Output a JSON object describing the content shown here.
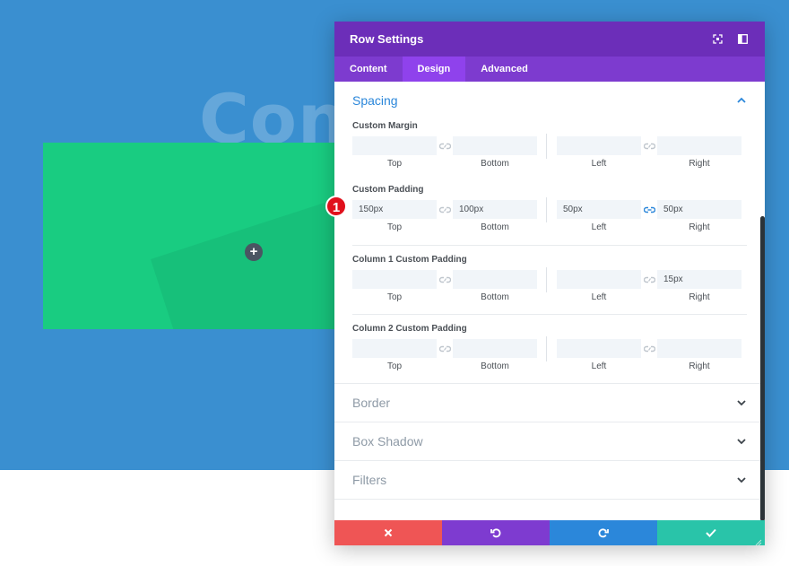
{
  "background": {
    "heading_text": "Cont"
  },
  "colors": {
    "canvas_blue": "#3a8fd0",
    "row_green": "#19cc81",
    "header_purple": "#6c2eb9",
    "tab_active": "#8f42ec",
    "accent_blue": "#2b87da",
    "cancel_red": "#ef5555",
    "save_teal": "#29c4a9"
  },
  "canvas": {
    "add_button_label": "+"
  },
  "modal": {
    "title": "Row Settings",
    "header_icons": [
      "fullscreen-icon",
      "sidebar-toggle-icon"
    ],
    "tabs": [
      {
        "label": "Content",
        "active": false
      },
      {
        "label": "Design",
        "active": true
      },
      {
        "label": "Advanced",
        "active": false
      }
    ],
    "spacing": {
      "title": "Spacing",
      "groups": [
        {
          "label": "Custom Margin",
          "fields": [
            {
              "value": "",
              "sub": "Top"
            },
            {
              "value": "",
              "sub": "Bottom"
            },
            {
              "value": "",
              "sub": "Left"
            },
            {
              "value": "",
              "sub": "Right"
            }
          ]
        },
        {
          "label": "Custom Padding",
          "fields": [
            {
              "value": "150px",
              "sub": "Top"
            },
            {
              "value": "100px",
              "sub": "Bottom"
            },
            {
              "value": "50px",
              "sub": "Left"
            },
            {
              "value": "50px",
              "sub": "Right"
            }
          ]
        },
        {
          "label": "Column 1 Custom Padding",
          "fields": [
            {
              "value": "",
              "sub": "Top"
            },
            {
              "value": "",
              "sub": "Bottom"
            },
            {
              "value": "",
              "sub": "Left"
            },
            {
              "value": "15px",
              "sub": "Right"
            }
          ]
        },
        {
          "label": "Column 2 Custom Padding",
          "fields": [
            {
              "value": "",
              "sub": "Top"
            },
            {
              "value": "",
              "sub": "Bottom"
            },
            {
              "value": "",
              "sub": "Left"
            },
            {
              "value": "",
              "sub": "Right"
            }
          ]
        }
      ]
    },
    "collapsed_sections": [
      "Border",
      "Box Shadow",
      "Filters"
    ],
    "callout_badge": "1"
  }
}
